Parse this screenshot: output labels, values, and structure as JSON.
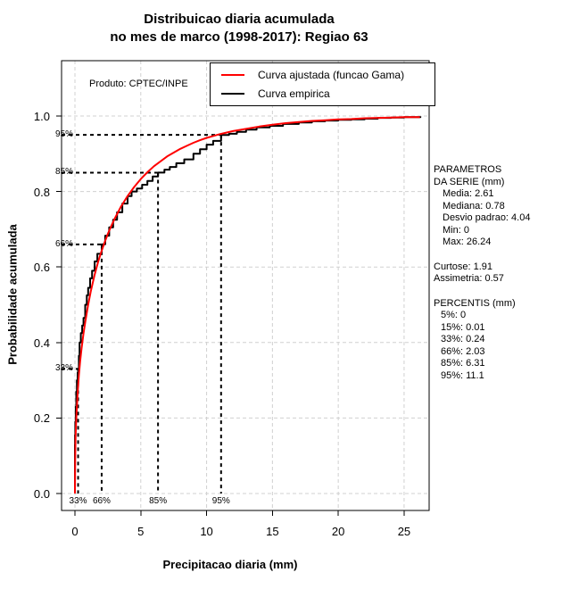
{
  "title": {
    "line1": "Distribuicao diaria acumulada",
    "line2": "no mes de marco (1998-2017): Regiao 63"
  },
  "product_label": "Produto: CPTEC/INPE",
  "legend": [
    {
      "label": "Curva ajustada (funcao Gama)",
      "color": "#ff0000"
    },
    {
      "label": "Curva empirica",
      "color": "#000000"
    }
  ],
  "stats_panel": {
    "header1": "PARAMETROS",
    "header2": "DA SERIE (mm)",
    "series_params": [
      "Media: 2.61",
      "Mediana: 0.78",
      "Desvio padrao: 4.04",
      "Min: 0",
      "Max: 26.24"
    ],
    "moments": [
      "Curtose: 1.91",
      "Assimetria: 0.57"
    ],
    "percentis_header": "PERCENTIS (mm)",
    "percentis": [
      "5%: 0",
      "15%: 0.01",
      "33%: 0.24",
      "66%: 2.03",
      "85%: 6.31",
      "95%: 11.1"
    ]
  },
  "chart_data": {
    "type": "line",
    "title": "Distribuicao diaria acumulada no mes de marco (1998-2017): Regiao 63",
    "xlabel": "Precipitacao diaria (mm)",
    "ylabel": "Probabilidade acumulada",
    "xlim": [
      0,
      26.24
    ],
    "ylim": [
      0,
      1
    ],
    "x_ticks": [
      0,
      5,
      10,
      15,
      20,
      25
    ],
    "y_ticks": [
      0.0,
      0.2,
      0.4,
      0.6,
      0.8,
      1.0
    ],
    "grid": true,
    "legend_position": "top",
    "percentile_markers": [
      {
        "label": "33%",
        "x": 0.24,
        "y": 0.33
      },
      {
        "label": "66%",
        "x": 2.03,
        "y": 0.66
      },
      {
        "label": "85%",
        "x": 6.31,
        "y": 0.85
      },
      {
        "label": "95%",
        "x": 11.1,
        "y": 0.95
      }
    ],
    "series": [
      {
        "name": "Curva ajustada (funcao Gama)",
        "color": "#ff0000",
        "style": "smooth",
        "points": [
          [
            0,
            0
          ],
          [
            0.02,
            0.09
          ],
          [
            0.05,
            0.15
          ],
          [
            0.1,
            0.2
          ],
          [
            0.2,
            0.265
          ],
          [
            0.3,
            0.313
          ],
          [
            0.4,
            0.352
          ],
          [
            0.5,
            0.384
          ],
          [
            0.65,
            0.424
          ],
          [
            0.8,
            0.458
          ],
          [
            1,
            0.5
          ],
          [
            1.2,
            0.535
          ],
          [
            1.5,
            0.58
          ],
          [
            1.75,
            0.612
          ],
          [
            2,
            0.64
          ],
          [
            2.25,
            0.665
          ],
          [
            2.5,
            0.688
          ],
          [
            2.75,
            0.708
          ],
          [
            3,
            0.727
          ],
          [
            3.5,
            0.76
          ],
          [
            4,
            0.788
          ],
          [
            4.5,
            0.812
          ],
          [
            5,
            0.833
          ],
          [
            5.5,
            0.851
          ],
          [
            6,
            0.867
          ],
          [
            6.5,
            0.88
          ],
          [
            7,
            0.893
          ],
          [
            7.5,
            0.903
          ],
          [
            8,
            0.913
          ],
          [
            8.5,
            0.921
          ],
          [
            9,
            0.929
          ],
          [
            9.5,
            0.936
          ],
          [
            10,
            0.942
          ],
          [
            10.5,
            0.947
          ],
          [
            11,
            0.952
          ],
          [
            11.5,
            0.956
          ],
          [
            12,
            0.96
          ],
          [
            13,
            0.966
          ],
          [
            14,
            0.972
          ],
          [
            15,
            0.977
          ],
          [
            16,
            0.981
          ],
          [
            17,
            0.984
          ],
          [
            18,
            0.987
          ],
          [
            19,
            0.989
          ],
          [
            20,
            0.991
          ],
          [
            21,
            0.992
          ],
          [
            22,
            0.994
          ],
          [
            23,
            0.995
          ],
          [
            24,
            0.996
          ],
          [
            25,
            0.997
          ],
          [
            26.2,
            0.997
          ]
        ]
      },
      {
        "name": "Curva empirica",
        "color": "#000000",
        "style": "step",
        "points": [
          [
            0,
            0
          ],
          [
            0,
            0.13
          ],
          [
            0.01,
            0.155
          ],
          [
            0.03,
            0.19
          ],
          [
            0.06,
            0.23
          ],
          [
            0.1,
            0.27
          ],
          [
            0.15,
            0.3
          ],
          [
            0.2,
            0.32
          ],
          [
            0.24,
            0.33
          ],
          [
            0.3,
            0.365
          ],
          [
            0.35,
            0.4
          ],
          [
            0.45,
            0.425
          ],
          [
            0.55,
            0.445
          ],
          [
            0.65,
            0.465
          ],
          [
            0.78,
            0.5
          ],
          [
            0.9,
            0.525
          ],
          [
            1,
            0.545
          ],
          [
            1.15,
            0.57
          ],
          [
            1.3,
            0.59
          ],
          [
            1.5,
            0.615
          ],
          [
            1.7,
            0.635
          ],
          [
            2.03,
            0.66
          ],
          [
            2.3,
            0.683
          ],
          [
            2.6,
            0.705
          ],
          [
            2.9,
            0.725
          ],
          [
            3.2,
            0.745
          ],
          [
            3.6,
            0.768
          ],
          [
            4,
            0.788
          ],
          [
            4.3,
            0.8
          ],
          [
            4.7,
            0.808
          ],
          [
            5.1,
            0.818
          ],
          [
            5.5,
            0.828
          ],
          [
            5.9,
            0.84
          ],
          [
            6.31,
            0.85
          ],
          [
            6.8,
            0.858
          ],
          [
            7.2,
            0.865
          ],
          [
            7.7,
            0.875
          ],
          [
            8.3,
            0.885
          ],
          [
            9,
            0.9
          ],
          [
            9.5,
            0.912
          ],
          [
            10,
            0.924
          ],
          [
            10.5,
            0.934
          ],
          [
            11.1,
            0.95
          ],
          [
            11.7,
            0.953
          ],
          [
            12.3,
            0.958
          ],
          [
            13,
            0.964
          ],
          [
            13.8,
            0.97
          ],
          [
            14.8,
            0.974
          ],
          [
            15.8,
            0.979
          ],
          [
            17,
            0.983
          ],
          [
            18,
            0.986
          ],
          [
            19,
            0.988
          ],
          [
            20,
            0.99
          ],
          [
            21,
            0.991
          ],
          [
            22,
            0.993
          ],
          [
            23,
            0.995
          ],
          [
            24,
            0.996
          ],
          [
            25,
            0.997
          ],
          [
            26.24,
            0.999
          ]
        ]
      }
    ]
  }
}
